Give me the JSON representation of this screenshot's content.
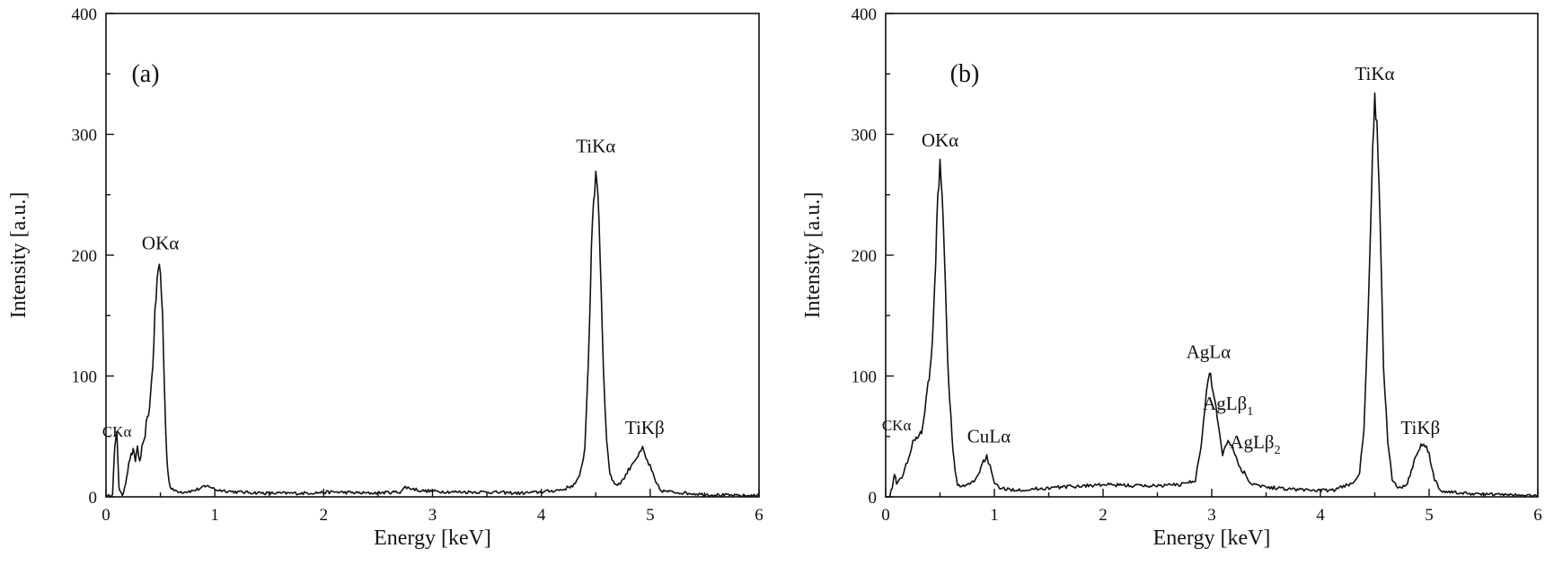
{
  "chart_data": [
    {
      "type": "line",
      "panel": "(a)",
      "xlabel": "Energy [keV]",
      "ylabel": "Intensity [a.u.]",
      "xlim": [
        0,
        6
      ],
      "ylim": [
        0,
        400
      ],
      "xticks": [
        0,
        1,
        2,
        3,
        4,
        5,
        6
      ],
      "yticks": [
        0,
        100,
        200,
        300,
        400
      ],
      "grid": false,
      "series": [
        {
          "x": [
            0,
            0.04,
            0.06,
            0.08,
            0.1,
            0.12,
            0.15,
            0.18,
            0.2,
            0.22,
            0.25,
            0.27,
            0.29,
            0.31,
            0.33,
            0.35,
            0.37,
            0.39,
            0.41,
            0.43,
            0.45,
            0.47,
            0.49,
            0.5,
            0.52,
            0.54,
            0.56,
            0.58,
            0.6,
            0.65,
            0.7,
            0.8,
            0.9,
            0.95,
            1.0,
            1.1,
            1.2,
            1.5,
            1.8,
            2.1,
            2.4,
            2.7,
            2.75,
            2.9,
            3.2,
            3.5,
            3.8,
            4.0,
            4.2,
            4.3,
            4.35,
            4.4,
            4.43,
            4.46,
            4.48,
            4.5,
            4.52,
            4.54,
            4.57,
            4.6,
            4.63,
            4.66,
            4.7,
            4.75,
            4.8,
            4.85,
            4.9,
            4.93,
            4.96,
            5.0,
            5.05,
            5.1,
            5.2,
            5.5,
            5.8,
            6.0
          ],
          "y": [
            0,
            1,
            3,
            40,
            52,
            8,
            0,
            12,
            22,
            32,
            38,
            30,
            42,
            28,
            40,
            45,
            60,
            68,
            85,
            110,
            150,
            180,
            191,
            185,
            150,
            80,
            30,
            12,
            6,
            5,
            4,
            5,
            8,
            9,
            6,
            5,
            4,
            3,
            3,
            4,
            3,
            4,
            8,
            5,
            4,
            4,
            3,
            4,
            6,
            10,
            16,
            40,
            110,
            200,
            245,
            268,
            255,
            200,
            110,
            45,
            20,
            12,
            10,
            14,
            22,
            30,
            35,
            40,
            32,
            25,
            12,
            5,
            4,
            2,
            1,
            1
          ]
        }
      ],
      "annotations": [
        {
          "text": "CKα",
          "x": 0.1,
          "y": 50
        },
        {
          "text": "OKα",
          "x": 0.5,
          "y": 205
        },
        {
          "text": "TiKα",
          "x": 4.5,
          "y": 285
        },
        {
          "text": "TiKβ",
          "x": 4.95,
          "y": 52
        }
      ]
    },
    {
      "type": "line",
      "panel": "(b)",
      "xlabel": "Energy [keV]",
      "ylabel": "Intensity [a.u.]",
      "xlim": [
        0,
        6
      ],
      "ylim": [
        0,
        400
      ],
      "xticks": [
        0,
        1,
        2,
        3,
        4,
        5,
        6
      ],
      "yticks": [
        0,
        100,
        200,
        300,
        400
      ],
      "grid": false,
      "series": [
        {
          "x": [
            0,
            0.04,
            0.06,
            0.08,
            0.1,
            0.15,
            0.2,
            0.25,
            0.28,
            0.3,
            0.33,
            0.36,
            0.38,
            0.4,
            0.42,
            0.44,
            0.46,
            0.48,
            0.5,
            0.52,
            0.54,
            0.56,
            0.58,
            0.6,
            0.62,
            0.64,
            0.66,
            0.7,
            0.8,
            0.85,
            0.9,
            0.93,
            0.96,
            1.0,
            1.05,
            1.1,
            1.3,
            1.6,
            2.0,
            2.4,
            2.7,
            2.85,
            2.9,
            2.95,
            2.98,
            3.0,
            3.03,
            3.06,
            3.1,
            3.15,
            3.2,
            3.25,
            3.3,
            3.35,
            3.5,
            3.8,
            4.1,
            4.2,
            4.3,
            4.36,
            4.4,
            4.44,
            4.47,
            4.5,
            4.52,
            4.55,
            4.58,
            4.62,
            4.66,
            4.7,
            4.75,
            4.8,
            4.85,
            4.9,
            4.95,
            5.0,
            5.05,
            5.1,
            5.3,
            5.6,
            6.0
          ],
          "y": [
            0,
            1,
            8,
            20,
            12,
            15,
            30,
            45,
            50,
            48,
            55,
            70,
            85,
            100,
            115,
            145,
            200,
            250,
            274,
            255,
            200,
            140,
            95,
            65,
            40,
            20,
            10,
            8,
            12,
            18,
            30,
            33,
            25,
            10,
            8,
            6,
            6,
            8,
            10,
            9,
            10,
            14,
            40,
            85,
            102,
            95,
            80,
            60,
            35,
            48,
            40,
            25,
            20,
            12,
            8,
            6,
            5,
            8,
            12,
            20,
            55,
            150,
            260,
            332,
            310,
            220,
            110,
            45,
            15,
            8,
            8,
            12,
            25,
            40,
            46,
            35,
            15,
            5,
            3,
            2,
            1
          ]
        }
      ],
      "annotations": [
        {
          "text": "CKα",
          "x": 0.1,
          "y": 55
        },
        {
          "text": "OKα",
          "x": 0.5,
          "y": 290
        },
        {
          "text": "CuLα",
          "x": 0.95,
          "y": 45
        },
        {
          "text": "AgLα",
          "x": 2.97,
          "y": 115
        },
        {
          "text": "AgLβ",
          "sub": "1",
          "x": 3.15,
          "y": 72
        },
        {
          "text": "AgLβ",
          "sub": "2",
          "x": 3.4,
          "y": 40
        },
        {
          "text": "TiKα",
          "x": 4.5,
          "y": 345
        },
        {
          "text": "TiKβ",
          "x": 4.92,
          "y": 52
        }
      ]
    }
  ]
}
